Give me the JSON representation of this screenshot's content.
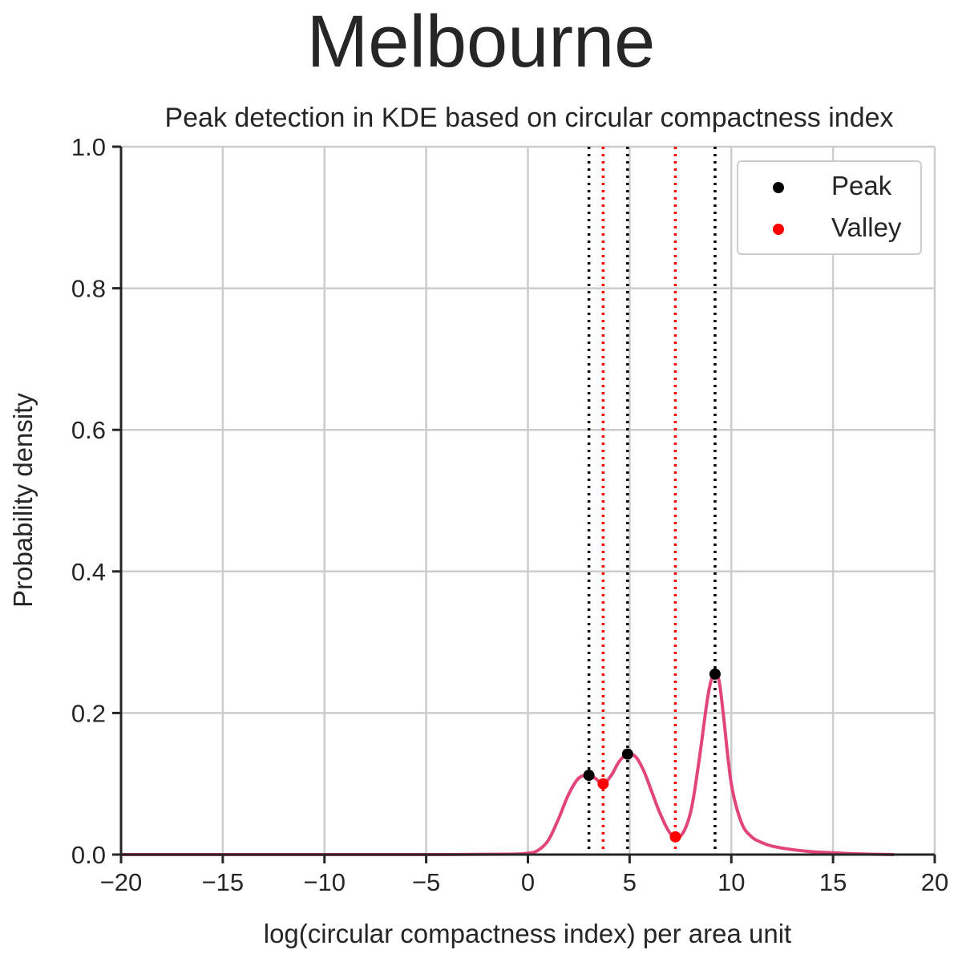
{
  "suptitle": "Melbourne",
  "chart_data": {
    "type": "line",
    "title": "Peak detection in KDE based on circular compactness index",
    "xlabel": "log(circular compactness index) per area unit",
    "ylabel": "Probability density",
    "xlim": [
      -20,
      20
    ],
    "ylim": [
      0,
      1
    ],
    "xticks": [
      -20,
      -15,
      -10,
      -5,
      0,
      5,
      10,
      15,
      20
    ],
    "xtick_labels": [
      "−20",
      "−15",
      "−10",
      "−5",
      "0",
      "5",
      "10",
      "15",
      "20"
    ],
    "yticks": [
      0,
      0.2,
      0.4,
      0.6,
      0.8,
      1.0
    ],
    "ytick_labels": [
      "0.0",
      "0.2",
      "0.4",
      "0.6",
      "0.8",
      "1.0"
    ],
    "grid": true,
    "legend_position": "top-right",
    "kde_curve": {
      "color": "#e2457a",
      "x": [
        -20,
        -15,
        -10,
        -5,
        -1,
        0,
        0.5,
        1,
        1.5,
        2,
        2.5,
        3,
        3.3,
        3.7,
        4.1,
        4.5,
        4.9,
        5.3,
        5.7,
        6.1,
        6.5,
        7,
        7.5,
        8,
        8.4,
        8.8,
        9.0,
        9.2,
        9.4,
        9.6,
        10,
        10.5,
        11,
        11.5,
        12,
        13,
        14,
        15,
        16,
        17,
        18
      ],
      "y": [
        0,
        0,
        0,
        0,
        0.0005,
        0.002,
        0.006,
        0.02,
        0.05,
        0.085,
        0.108,
        0.112,
        0.108,
        0.1,
        0.112,
        0.132,
        0.142,
        0.138,
        0.118,
        0.088,
        0.058,
        0.03,
        0.026,
        0.06,
        0.13,
        0.215,
        0.245,
        0.255,
        0.245,
        0.2,
        0.1,
        0.045,
        0.025,
        0.017,
        0.012,
        0.007,
        0.004,
        0.0025,
        0.0012,
        0.0004,
        0
      ]
    },
    "peaks": {
      "name": "Peak",
      "color": "#000000",
      "x": [
        3.0,
        4.9,
        9.2
      ],
      "y": [
        0.112,
        0.142,
        0.255
      ]
    },
    "valleys": {
      "name": "Valley",
      "color": "#ff0000",
      "x": [
        3.7,
        7.25
      ],
      "y": [
        0.1,
        0.025
      ]
    }
  }
}
